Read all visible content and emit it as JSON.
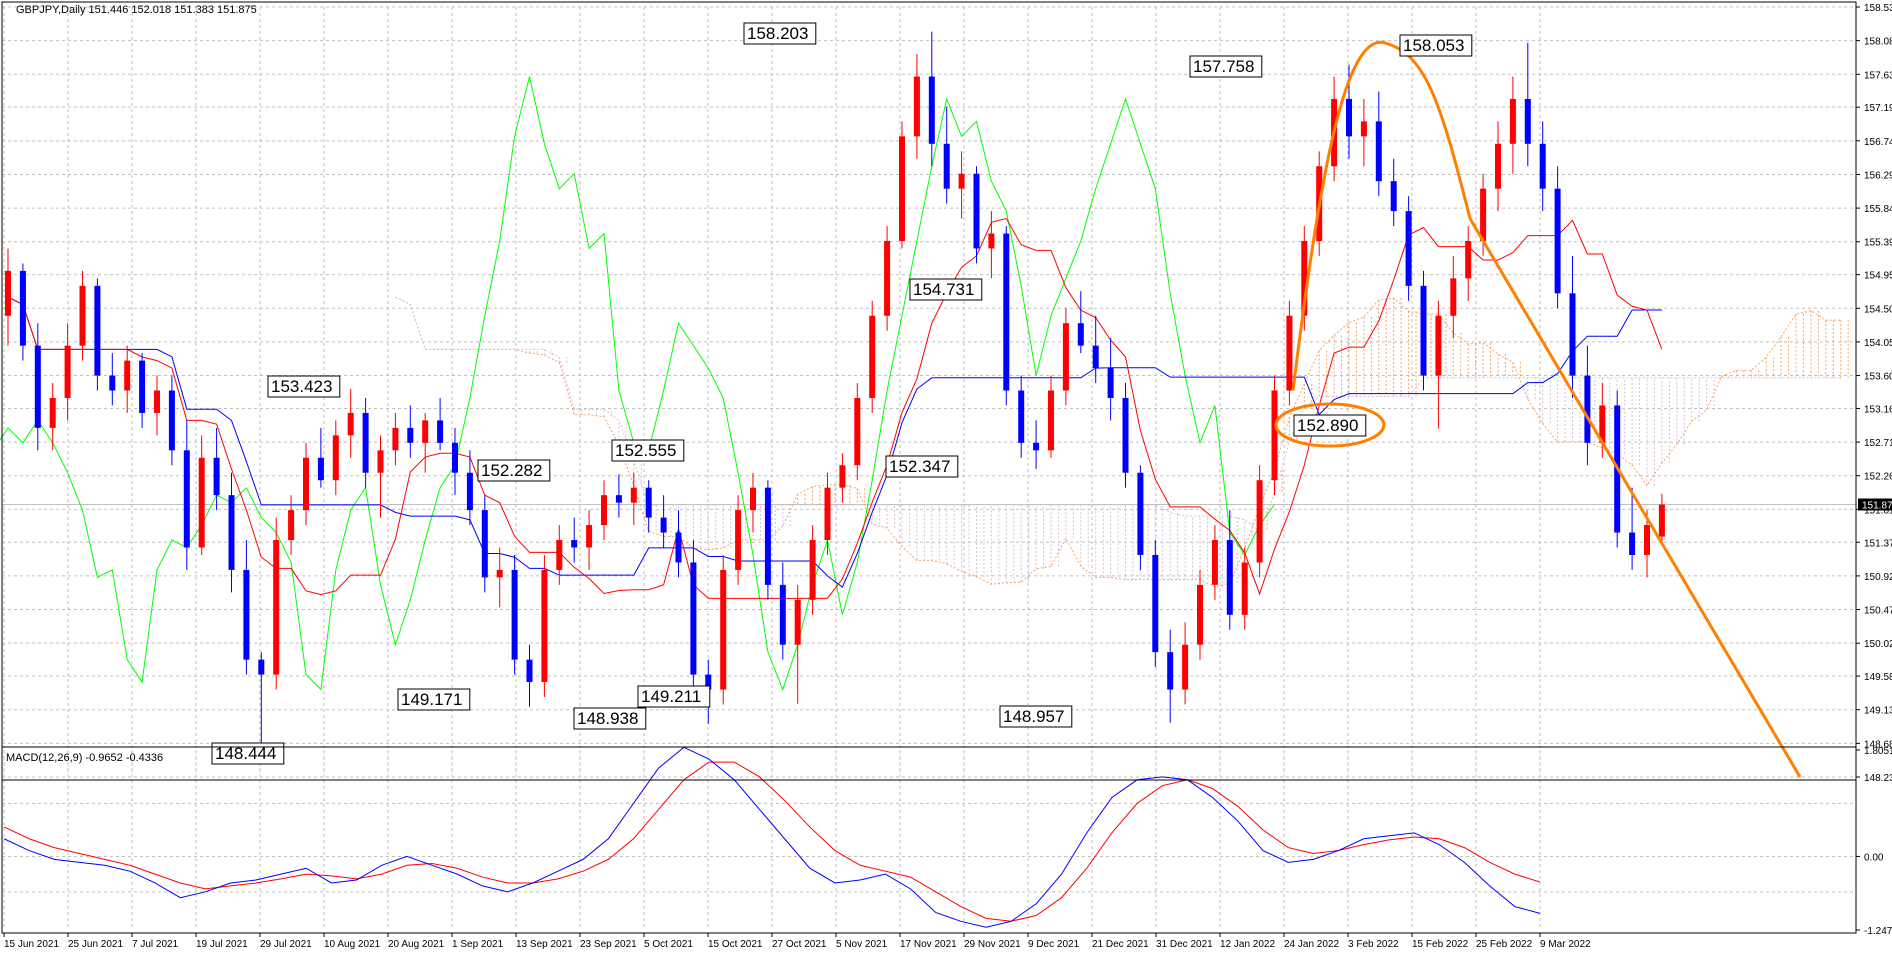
{
  "chart_data": {
    "type": "candlestick",
    "title": "GBPJPY,Daily  151.446 152.018 151.383 151.875",
    "macd_label": "MACD(12,26,9) -0.9652 -0.4336",
    "price_axis": {
      "ylim": [
        148.23,
        158.53
      ],
      "ticks": [
        "158.530",
        "158.080",
        "157.630",
        "157.190",
        "156.740",
        "156.290",
        "155.840",
        "155.390",
        "154.950",
        "154.500",
        "154.050",
        "153.600",
        "153.160",
        "152.710",
        "152.260",
        "151.810",
        "151.370",
        "150.920",
        "150.470",
        "150.020",
        "149.580",
        "149.130",
        "148.680",
        "148.230"
      ]
    },
    "current_price": "151.875",
    "macd_axis": {
      "ylim": [
        -1.2475,
        1.8051
      ],
      "ticks": [
        "1.8051",
        "0.00",
        "-1.2475"
      ]
    },
    "x_labels": [
      "15 Jun 2021",
      "25 Jun 2021",
      "7 Jul 2021",
      "19 Jul 2021",
      "29 Jul 2021",
      "10 Aug 2021",
      "20 Aug 2021",
      "1 Sep 2021",
      "13 Sep 2021",
      "23 Sep 2021",
      "5 Oct 2021",
      "15 Oct 2021",
      "27 Oct 2021",
      "5 Nov 2021",
      "17 Nov 2021",
      "29 Nov 2021",
      "9 Dec 2021",
      "21 Dec 2021",
      "31 Dec 2021",
      "12 Jan 2022",
      "24 Jan 2022",
      "3 Feb 2022",
      "15 Feb 2022",
      "25 Feb 2022",
      "9 Mar 2022"
    ],
    "candles": [
      [
        154.4,
        155.3,
        154.0,
        155.0
      ],
      [
        155.0,
        155.1,
        153.8,
        154.0
      ],
      [
        154.0,
        154.3,
        152.6,
        152.9
      ],
      [
        152.9,
        153.5,
        152.6,
        153.3
      ],
      [
        153.3,
        154.3,
        153.0,
        154.0
      ],
      [
        154.0,
        155.0,
        153.8,
        154.8
      ],
      [
        154.8,
        154.9,
        153.4,
        153.6
      ],
      [
        153.6,
        153.9,
        153.2,
        153.4
      ],
      [
        153.4,
        154.0,
        153.1,
        153.8
      ],
      [
        153.8,
        153.9,
        152.9,
        153.1
      ],
      [
        153.1,
        153.6,
        152.8,
        153.4
      ],
      [
        153.4,
        153.6,
        152.4,
        152.6
      ],
      [
        152.6,
        153.0,
        151.0,
        151.3
      ],
      [
        151.3,
        152.8,
        151.2,
        152.5
      ],
      [
        152.5,
        152.9,
        151.8,
        152.0
      ],
      [
        152.0,
        152.3,
        150.7,
        151.0
      ],
      [
        151.0,
        151.4,
        149.6,
        149.8
      ],
      [
        149.8,
        149.9,
        148.44,
        149.6
      ],
      [
        149.6,
        151.7,
        149.4,
        151.4
      ],
      [
        151.4,
        152.0,
        151.2,
        151.8
      ],
      [
        151.8,
        152.7,
        151.6,
        152.5
      ],
      [
        152.5,
        152.9,
        152.1,
        152.2
      ],
      [
        152.2,
        153.0,
        152.0,
        152.8
      ],
      [
        152.8,
        153.42,
        152.5,
        153.1
      ],
      [
        153.1,
        153.3,
        152.1,
        152.3
      ],
      [
        152.3,
        152.8,
        151.7,
        152.6
      ],
      [
        152.6,
        153.1,
        152.4,
        152.9
      ],
      [
        152.9,
        153.2,
        152.5,
        152.7
      ],
      [
        152.7,
        153.1,
        152.3,
        153.0
      ],
      [
        153.0,
        153.3,
        152.6,
        152.7
      ],
      [
        152.7,
        152.9,
        152.0,
        152.3
      ],
      [
        152.3,
        152.6,
        151.6,
        151.8
      ],
      [
        151.8,
        152.0,
        150.7,
        150.9
      ],
      [
        150.9,
        151.3,
        150.5,
        151.0
      ],
      [
        151.0,
        151.2,
        149.6,
        149.8
      ],
      [
        149.8,
        150.0,
        149.17,
        149.5
      ],
      [
        149.5,
        151.2,
        149.3,
        151.0
      ],
      [
        151.0,
        151.6,
        150.8,
        151.4
      ],
      [
        151.4,
        151.7,
        151.1,
        151.3
      ],
      [
        151.3,
        151.8,
        151.0,
        151.6
      ],
      [
        151.6,
        152.2,
        151.4,
        152.0
      ],
      [
        152.0,
        152.28,
        151.7,
        151.9
      ],
      [
        151.9,
        152.3,
        151.6,
        152.1
      ],
      [
        152.1,
        152.2,
        151.5,
        151.7
      ],
      [
        151.7,
        152.0,
        151.3,
        151.5
      ],
      [
        151.5,
        151.8,
        150.9,
        151.1
      ],
      [
        151.1,
        151.4,
        149.3,
        149.6
      ],
      [
        149.6,
        149.8,
        148.94,
        149.4
      ],
      [
        149.4,
        151.2,
        149.2,
        151.0
      ],
      [
        151.0,
        152.0,
        150.8,
        151.8
      ],
      [
        151.8,
        152.3,
        151.5,
        152.1
      ],
      [
        152.1,
        152.2,
        150.6,
        150.8
      ],
      [
        150.8,
        151.1,
        149.8,
        150.0
      ],
      [
        150.0,
        150.8,
        149.21,
        150.6
      ],
      [
        150.6,
        151.6,
        150.4,
        151.4
      ],
      [
        151.4,
        152.3,
        151.2,
        152.1
      ],
      [
        152.1,
        152.56,
        151.9,
        152.4
      ],
      [
        152.4,
        153.5,
        152.2,
        153.3
      ],
      [
        153.3,
        154.6,
        153.1,
        154.4
      ],
      [
        154.4,
        155.6,
        154.2,
        155.4
      ],
      [
        155.4,
        157.0,
        155.3,
        156.8
      ],
      [
        156.8,
        157.9,
        156.5,
        157.6
      ],
      [
        157.6,
        158.2,
        156.4,
        156.7
      ],
      [
        156.7,
        157.2,
        155.9,
        156.1
      ],
      [
        156.1,
        156.6,
        155.7,
        156.3
      ],
      [
        156.3,
        156.4,
        155.1,
        155.3
      ],
      [
        155.3,
        155.8,
        154.9,
        155.5
      ],
      [
        155.5,
        155.6,
        153.2,
        153.4
      ],
      [
        153.4,
        153.6,
        152.5,
        152.7
      ],
      [
        152.7,
        153.0,
        152.35,
        152.6
      ],
      [
        152.6,
        153.6,
        152.5,
        153.4
      ],
      [
        153.4,
        154.5,
        153.2,
        154.3
      ],
      [
        154.3,
        154.73,
        153.9,
        154.0
      ],
      [
        154.0,
        154.4,
        153.5,
        153.7
      ],
      [
        153.7,
        154.1,
        153.0,
        153.3
      ],
      [
        153.3,
        153.5,
        152.1,
        152.3
      ],
      [
        152.3,
        152.4,
        151.0,
        151.2
      ],
      [
        151.2,
        151.4,
        149.7,
        149.9
      ],
      [
        149.9,
        150.2,
        148.957,
        149.4
      ],
      [
        149.4,
        150.3,
        149.2,
        150.0
      ],
      [
        150.0,
        151.0,
        149.8,
        150.8
      ],
      [
        150.8,
        151.6,
        150.6,
        151.4
      ],
      [
        151.4,
        151.8,
        150.2,
        150.4
      ],
      [
        150.4,
        151.3,
        150.2,
        151.1
      ],
      [
        151.1,
        152.4,
        150.9,
        152.2
      ],
      [
        152.2,
        153.6,
        152.0,
        153.4
      ],
      [
        153.4,
        154.6,
        153.2,
        154.4
      ],
      [
        154.4,
        155.6,
        154.2,
        155.4
      ],
      [
        155.4,
        156.6,
        155.2,
        156.4
      ],
      [
        156.4,
        157.6,
        156.2,
        157.3
      ],
      [
        157.3,
        157.76,
        156.5,
        156.8
      ],
      [
        156.8,
        157.3,
        156.4,
        157.0
      ],
      [
        157.0,
        157.4,
        156.0,
        156.2
      ],
      [
        156.2,
        156.5,
        155.6,
        155.8
      ],
      [
        155.8,
        156.0,
        154.6,
        154.8
      ],
      [
        154.8,
        155.0,
        153.4,
        153.6
      ],
      [
        153.6,
        154.6,
        152.89,
        154.4
      ],
      [
        154.4,
        155.2,
        154.1,
        154.9
      ],
      [
        154.9,
        155.6,
        154.6,
        155.4
      ],
      [
        155.4,
        156.3,
        155.2,
        156.1
      ],
      [
        156.1,
        157.0,
        155.8,
        156.7
      ],
      [
        156.7,
        157.6,
        156.3,
        157.3
      ],
      [
        157.3,
        158.053,
        156.4,
        156.7
      ],
      [
        156.7,
        157.0,
        155.8,
        156.1
      ],
      [
        156.1,
        156.4,
        154.5,
        154.7
      ],
      [
        154.7,
        155.2,
        153.3,
        153.6
      ],
      [
        153.6,
        154.0,
        152.4,
        152.7
      ],
      [
        152.7,
        153.5,
        152.5,
        153.2
      ],
      [
        153.2,
        153.4,
        151.3,
        151.5
      ],
      [
        151.5,
        152.1,
        151.0,
        151.2
      ],
      [
        151.2,
        151.8,
        150.9,
        151.6
      ],
      [
        151.446,
        152.018,
        151.383,
        151.875
      ]
    ],
    "macd": [
      {
        "name": "MACD",
        "values": [
          0.3,
          0.1,
          -0.05,
          -0.1,
          -0.15,
          -0.25,
          -0.45,
          -0.7,
          -0.6,
          -0.45,
          -0.4,
          -0.3,
          -0.2,
          -0.45,
          -0.4,
          -0.15,
          0.0,
          -0.15,
          -0.3,
          -0.5,
          -0.6,
          -0.45,
          -0.25,
          -0.05,
          0.3,
          0.9,
          1.5,
          1.85,
          1.65,
          1.3,
          0.8,
          0.3,
          -0.2,
          -0.45,
          -0.4,
          -0.3,
          -0.55,
          -0.95,
          -1.1,
          -1.2,
          -1.1,
          -0.8,
          -0.3,
          0.4,
          1.0,
          1.3,
          1.35,
          1.3,
          1.0,
          0.6,
          0.1,
          -0.1,
          -0.05,
          0.1,
          0.3,
          0.35,
          0.4,
          0.2,
          -0.1,
          -0.5,
          -0.85,
          -0.9652
        ]
      },
      {
        "name": "Signal",
        "values": [
          0.5,
          0.3,
          0.15,
          0.05,
          -0.05,
          -0.15,
          -0.3,
          -0.45,
          -0.55,
          -0.5,
          -0.45,
          -0.38,
          -0.3,
          -0.33,
          -0.38,
          -0.3,
          -0.15,
          -0.12,
          -0.2,
          -0.35,
          -0.45,
          -0.45,
          -0.38,
          -0.25,
          -0.05,
          0.3,
          0.8,
          1.3,
          1.6,
          1.6,
          1.35,
          0.95,
          0.5,
          0.1,
          -0.15,
          -0.25,
          -0.35,
          -0.6,
          -0.85,
          -1.05,
          -1.1,
          -1.0,
          -0.7,
          -0.2,
          0.4,
          0.9,
          1.2,
          1.3,
          1.15,
          0.85,
          0.45,
          0.15,
          0.05,
          0.1,
          0.2,
          0.28,
          0.33,
          0.3,
          0.15,
          -0.1,
          -0.3,
          -0.4336
        ]
      }
    ],
    "annotations": [
      {
        "label": "158.203",
        "price": 158.203
      },
      {
        "label": "157.758",
        "price": 157.758
      },
      {
        "label": "158.053",
        "price": 158.053
      },
      {
        "label": "154.731",
        "price": 154.731
      },
      {
        "label": "153.423",
        "price": 153.423
      },
      {
        "label": "152.555",
        "price": 152.555
      },
      {
        "label": "152.347",
        "price": 152.347
      },
      {
        "label": "152.282",
        "price": 152.282
      },
      {
        "label": "152.890",
        "price": 152.89
      },
      {
        "label": "149.171",
        "price": 149.171
      },
      {
        "label": "149.211",
        "price": 149.211
      },
      {
        "label": "148.938",
        "price": 148.938
      },
      {
        "label": "148.957",
        "price": 148.957
      },
      {
        "label": "148.444",
        "price": 148.444
      }
    ],
    "colors": {
      "bull": "#ff0000",
      "bear": "#0000ff",
      "tenkan": "#ff0000",
      "kijun": "#0000ff",
      "chikou": "#00ff00",
      "cloud": "#f4a460",
      "cloud_alt": "#d8bfd8",
      "drawing": "#ff7f00",
      "grid": "#c0c0c0"
    }
  }
}
